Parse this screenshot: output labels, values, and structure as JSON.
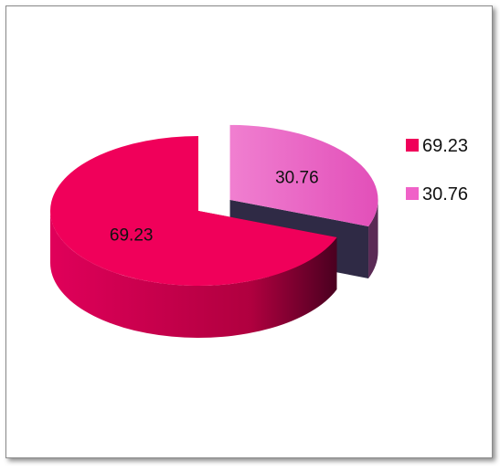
{
  "chart_data": {
    "type": "pie",
    "categories": [
      "69.23",
      "30.76"
    ],
    "values": [
      69.23,
      30.76
    ],
    "data_labels": [
      "69.23",
      "30.76"
    ],
    "colors": [
      "#F0005A",
      "#F062C8"
    ],
    "side_colors": [
      "#B8003F",
      "#5A2A55"
    ],
    "style": "3d-exploded",
    "legend": {
      "position": "right",
      "entries": [
        "69.23",
        "30.76"
      ]
    }
  }
}
